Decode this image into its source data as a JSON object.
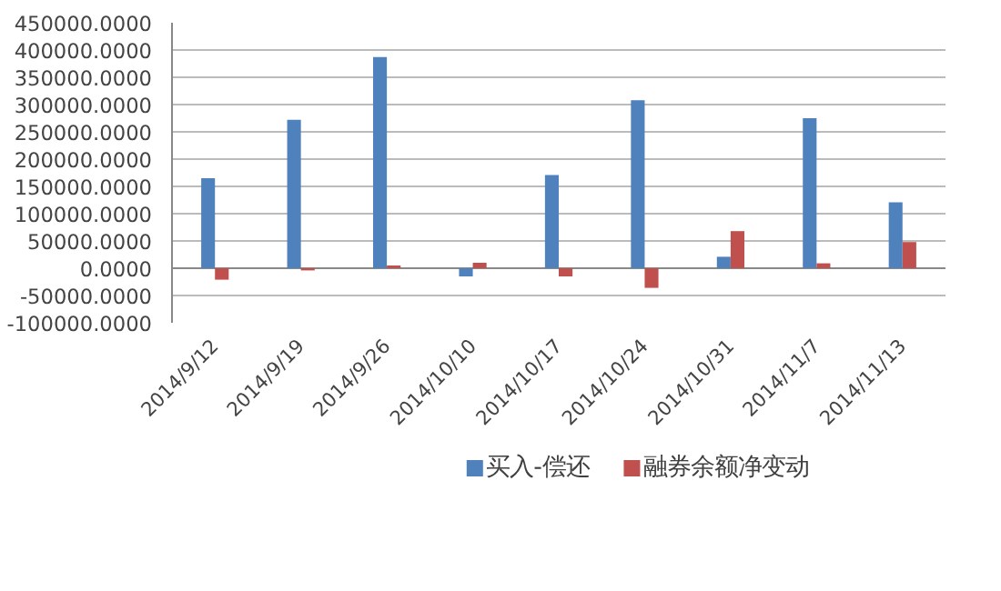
{
  "chart_data": {
    "type": "bar",
    "categories": [
      "2014/9/12",
      "2014/9/19",
      "2014/9/26",
      "2014/10/10",
      "2014/10/17",
      "2014/10/24",
      "2014/10/31",
      "2014/11/7",
      "2014/11/13"
    ],
    "series": [
      {
        "name": "买入-偿还",
        "color": "#4f81bd",
        "values": [
          165000,
          272000,
          387000,
          -15000,
          171000,
          308000,
          21000,
          275000,
          121000
        ]
      },
      {
        "name": "融券余额净变动",
        "color": "#c0504d",
        "values": [
          -21000,
          -4000,
          5000,
          10000,
          -15000,
          -36000,
          68000,
          9000,
          48000
        ]
      }
    ],
    "ylim": [
      -100000,
      450000
    ],
    "yticks": [
      {
        "value": -100000,
        "label": "-100000.0000"
      },
      {
        "value": -50000,
        "label": "-50000.0000"
      },
      {
        "value": 0,
        "label": "0.0000"
      },
      {
        "value": 50000,
        "label": "50000.0000"
      },
      {
        "value": 100000,
        "label": "100000.0000"
      },
      {
        "value": 150000,
        "label": "150000.0000"
      },
      {
        "value": 200000,
        "label": "200000.0000"
      },
      {
        "value": 250000,
        "label": "250000.0000"
      },
      {
        "value": 300000,
        "label": "300000.0000"
      },
      {
        "value": 350000,
        "label": "350000.0000"
      },
      {
        "value": 400000,
        "label": "400000.0000"
      },
      {
        "value": 450000,
        "label": "450000.0000"
      }
    ],
    "grid": "y",
    "legend": "bottom"
  }
}
